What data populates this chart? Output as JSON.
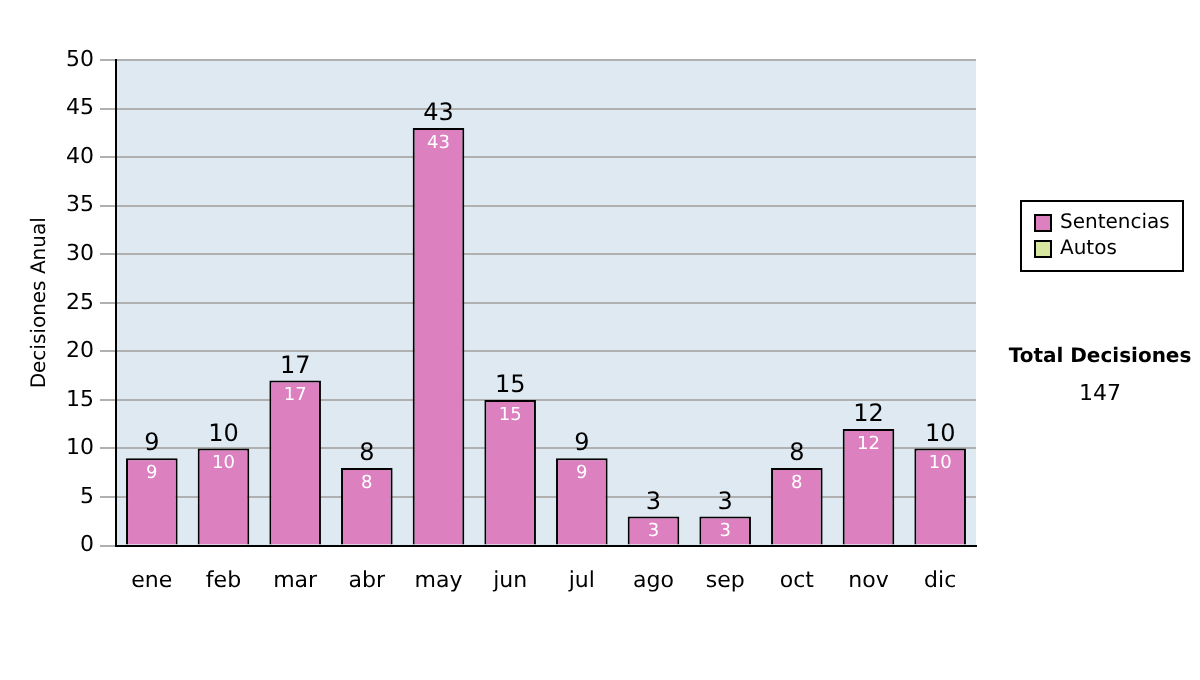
{
  "chart_data": {
    "type": "bar",
    "ylabel": "Decisiones Anual",
    "categories": [
      "ene",
      "feb",
      "mar",
      "abr",
      "may",
      "jun",
      "jul",
      "ago",
      "sep",
      "oct",
      "nov",
      "dic"
    ],
    "series": [
      {
        "name": "Sentencias",
        "color": "#dd80c0",
        "values": [
          9,
          10,
          17,
          8,
          43,
          15,
          9,
          3,
          3,
          8,
          12,
          10
        ],
        "value_labels": [
          "9",
          "10",
          "17",
          "8",
          "43",
          "15",
          "9",
          "3",
          "3",
          "8",
          "12",
          "10"
        ]
      },
      {
        "name": "Autos",
        "color": "#d8e8a0",
        "values": [
          0,
          0,
          0,
          0,
          0,
          0,
          0,
          0,
          0,
          0,
          0,
          0
        ]
      }
    ],
    "stacked": true,
    "totals": [
      "9",
      "10",
      "17",
      "8",
      "43",
      "15",
      "9",
      "3",
      "3",
      "8",
      "12",
      "10"
    ],
    "ylim": [
      0,
      50
    ],
    "yticks": [
      0,
      5,
      10,
      15,
      20,
      25,
      30,
      35,
      40,
      45,
      50
    ],
    "grid": "y",
    "legend": "right",
    "annotations": [
      "Total Decisiones",
      "147"
    ]
  }
}
